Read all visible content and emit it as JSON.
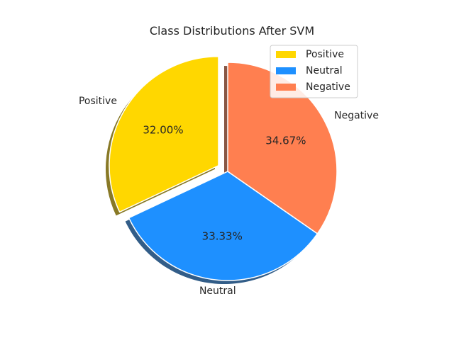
{
  "chart_data": {
    "type": "pie",
    "title": "Class Distributions After SVM",
    "categories": [
      "Positive",
      "Neutral",
      "Negative"
    ],
    "values": [
      32.0,
      33.33,
      34.67
    ],
    "percent_labels": [
      "32.00%",
      "33.33%",
      "34.67%"
    ],
    "colors": [
      "#FFD700",
      "#1E90FF",
      "#FF7F50"
    ],
    "explode": [
      0.1,
      0,
      0
    ],
    "start_angle_deg": 90,
    "shadow": true,
    "legend": {
      "placement": "upper-right",
      "entries": [
        "Positive",
        "Neutral",
        "Negative"
      ]
    }
  }
}
